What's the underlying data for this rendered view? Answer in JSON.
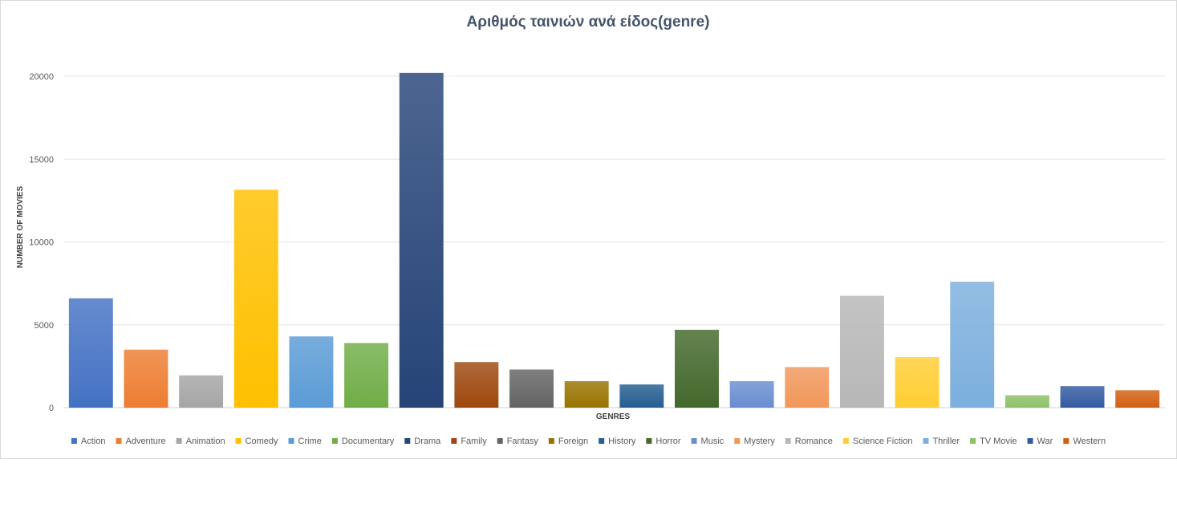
{
  "chart_data": {
    "type": "bar",
    "title": "Αριθμός ταινιών ανά είδος(genre)",
    "xlabel": "GENRES",
    "ylabel": "NUMBER OF MOVIES",
    "ylim": [
      0,
      20000
    ],
    "yticks": [
      0,
      5000,
      10000,
      15000,
      20000
    ],
    "grid": true,
    "legend_position": "bottom",
    "categories": [
      "Action",
      "Adventure",
      "Animation",
      "Comedy",
      "Crime",
      "Documentary",
      "Drama",
      "Family",
      "Fantasy",
      "Foreign",
      "History",
      "Horror",
      "Music",
      "Mystery",
      "Romance",
      "Science Fiction",
      "Thriller",
      "TV Movie",
      "War",
      "Western"
    ],
    "values": [
      6600,
      3500,
      1950,
      13150,
      4300,
      3900,
      20200,
      2750,
      2300,
      1600,
      1400,
      4700,
      1600,
      2450,
      6750,
      3050,
      7600,
      750,
      1300,
      1050
    ],
    "colors": [
      "#4472c4",
      "#ed7d31",
      "#a5a5a5",
      "#ffc000",
      "#5b9bd5",
      "#70ad47",
      "#264478",
      "#9e480e",
      "#636363",
      "#997300",
      "#255e91",
      "#43682b",
      "#698ed0",
      "#f1975a",
      "#b7b7b7",
      "#ffcd33",
      "#7cafdd",
      "#8cc168",
      "#335aa1",
      "#d26012"
    ]
  }
}
